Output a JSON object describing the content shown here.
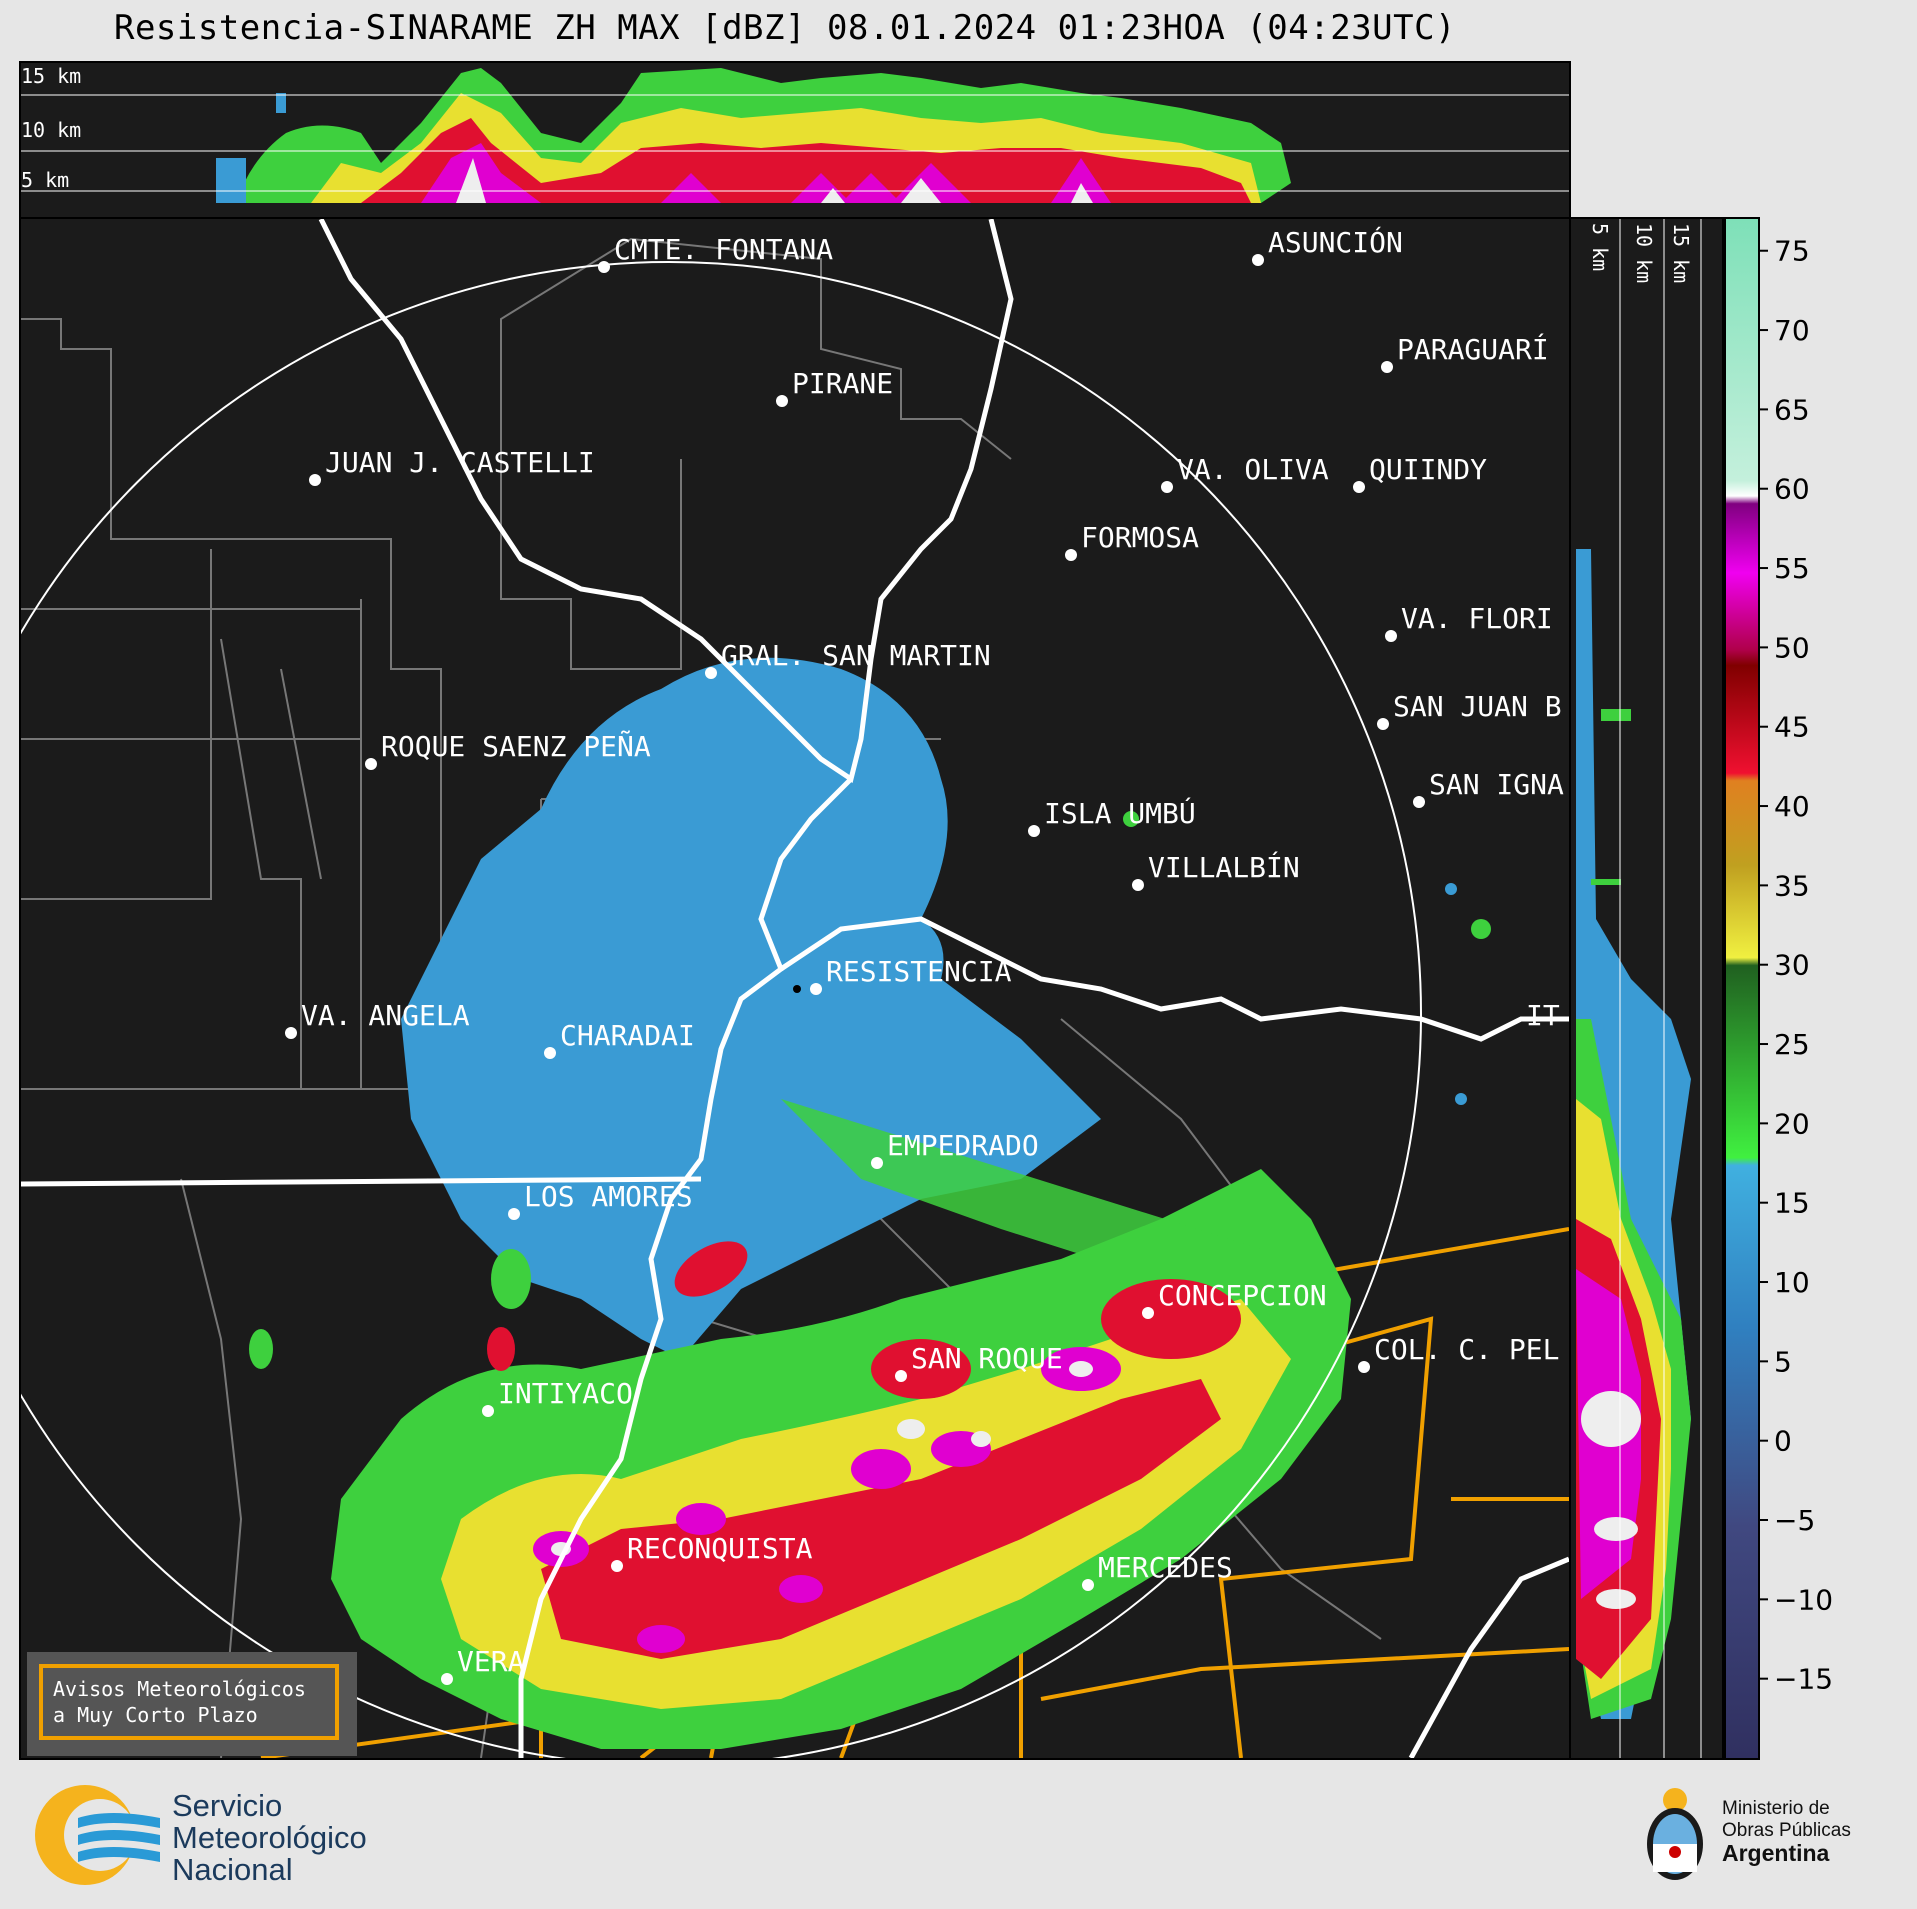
{
  "title": "Resistencia-SINARAME ZH MAX [dBZ] 08.01.2024 01:23HOA (04:23UTC)",
  "top_panel": {
    "altitudes": [
      "15 km",
      "10 km",
      "5 km"
    ]
  },
  "side_panel": {
    "altitudes": [
      "5 km",
      "10 km",
      "15 km"
    ]
  },
  "colorbar": {
    "unit": "dBZ",
    "ticks": [
      75,
      70,
      65,
      60,
      55,
      50,
      45,
      40,
      35,
      30,
      25,
      20,
      15,
      10,
      5,
      0,
      -5,
      -10,
      -15
    ],
    "tick_labels": [
      "75",
      "70",
      "65",
      "60",
      "55",
      "50",
      "45",
      "40",
      "35",
      "30",
      "25",
      "20",
      "15",
      "10",
      "5",
      "0",
      "−5",
      "−10",
      "−15"
    ],
    "range": [
      -20,
      77
    ]
  },
  "cities": [
    {
      "name": "CMTE. FONTANA"
    },
    {
      "name": "ASUNCIÓN"
    },
    {
      "name": "PARAGUARÍ"
    },
    {
      "name": "PIRANE"
    },
    {
      "name": "JUAN J. CASTELLI"
    },
    {
      "name": "VA. OLIVA"
    },
    {
      "name": "QUIINDY"
    },
    {
      "name": "FORMOSA"
    },
    {
      "name": "VA. FLORI"
    },
    {
      "name": "GRAL. SAN MARTIN"
    },
    {
      "name": "SAN JUAN B"
    },
    {
      "name": "ROQUE SAENZ PEÑA"
    },
    {
      "name": "SAN IGNA"
    },
    {
      "name": "ISLA UMBÚ"
    },
    {
      "name": "VILLALBÍN"
    },
    {
      "name": "RESISTENCIA"
    },
    {
      "name": "VA. ANGELA"
    },
    {
      "name": "CHARADAI"
    },
    {
      "name": "IT"
    },
    {
      "name": "EMPEDRADO"
    },
    {
      "name": "LOS AMORES"
    },
    {
      "name": "CONCEPCION"
    },
    {
      "name": "SAN ROQUE"
    },
    {
      "name": "COL. C. PEL"
    },
    {
      "name": "INTIYACO"
    },
    {
      "name": "RECONQUISTA"
    },
    {
      "name": "MERCEDES"
    },
    {
      "name": "VERA"
    }
  ],
  "legend": {
    "line1": "Avisos Meteorológicos",
    "line2": "a Muy Corto Plazo"
  },
  "footer": {
    "org_line1": "Servicio",
    "org_line2": "Meteorológico",
    "org_line3": "Nacional",
    "ministry_line1": "Ministerio de",
    "ministry_line2": "Obras Públicas",
    "ministry_line3": "Argentina"
  },
  "colors": {
    "background": "#1b1b1b",
    "echo_light": "#3a9bd4",
    "echo_green": "#3ed03e",
    "echo_yellow": "#e8e030",
    "echo_red": "#e01030",
    "echo_magenta": "#e000d0",
    "warning": "#f0a000"
  }
}
